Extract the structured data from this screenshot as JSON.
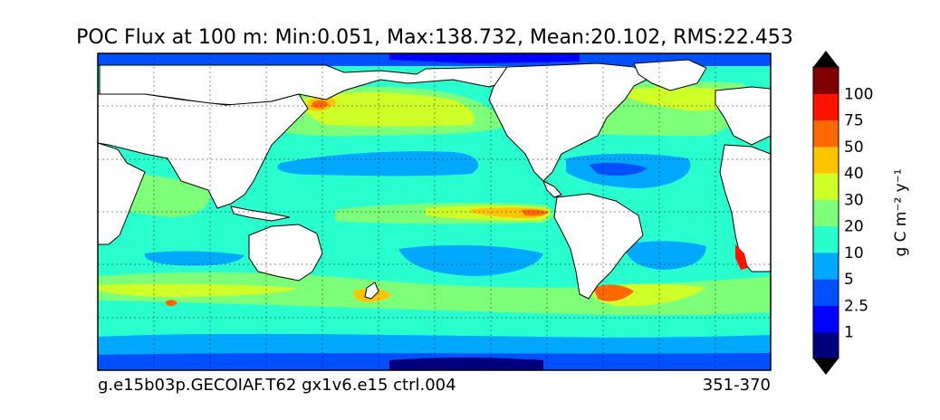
{
  "figure": {
    "title": "POC Flux at 100 m: Min:0.051, Max:138.732, Mean:20.102, RMS:22.453",
    "caption_left": "g.e15b03p.GECOIAF.T62 gx1v6.e15 ctrl.004",
    "caption_right": "351-370"
  },
  "map": {
    "projection": "equirectangular (global, Pacific-centered, ~20E to 380E)",
    "gridlines": true,
    "land_color": "#ffffff",
    "coastline_color": "#000000"
  },
  "colorbar": {
    "unit_label": "g C m⁻² y⁻¹",
    "levels": [
      "1",
      "2.5",
      "5",
      "10",
      "20",
      "30",
      "40",
      "50",
      "75",
      "100"
    ],
    "colors": [
      "#00007f",
      "#0000ff",
      "#0050ff",
      "#00a8ff",
      "#29ffce",
      "#7dff7a",
      "#ceff29",
      "#ffc400",
      "#ff6800",
      "#ff1300",
      "#7f0000"
    ],
    "extend": "both"
  }
}
